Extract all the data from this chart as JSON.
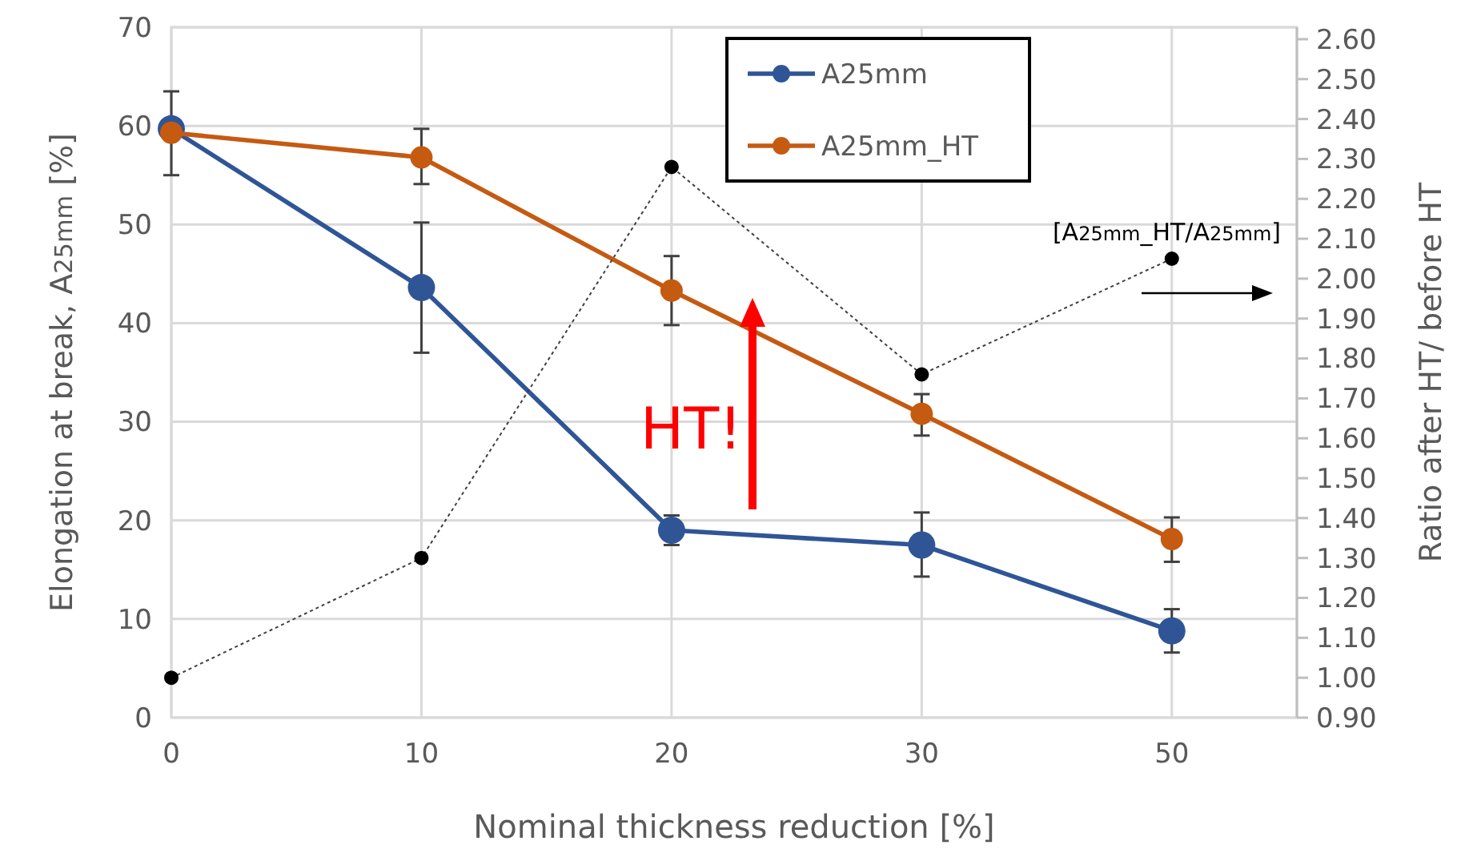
{
  "chart_data": {
    "type": "line",
    "xlabel": "Nominal thickness reduction [%]",
    "ylabel": "Elongation at break, A$_{25mm}$ [%]",
    "y2label": "Ratio after HT/ before HT",
    "categories": [
      "0",
      "10",
      "20",
      "30",
      "50"
    ],
    "series": [
      {
        "name": "A25mm",
        "color": "#2f5597",
        "values": [
          59.7,
          43.6,
          19.0,
          17.5,
          8.8
        ],
        "errors": [
          [
            55.0,
            63.5
          ],
          [
            37.0,
            50.2
          ],
          [
            17.5,
            20.5
          ],
          [
            14.3,
            20.8
          ],
          [
            6.6,
            11.0
          ]
        ]
      },
      {
        "name": "A25mm_HT",
        "color": "#c55a11",
        "values": [
          59.3,
          56.8,
          43.3,
          30.8,
          18.1
        ],
        "errors": [
          null,
          [
            54.1,
            59.7
          ],
          [
            39.8,
            46.8
          ],
          [
            28.6,
            32.8
          ],
          [
            15.8,
            20.3
          ]
        ]
      },
      {
        "color": "#000000",
        "axis": "y2",
        "line_style": "dotted",
        "values": [
          1.0,
          1.3,
          2.28,
          1.76,
          2.05
        ]
      }
    ],
    "ylim": [
      0,
      70
    ],
    "yticks": [
      0,
      10,
      20,
      30,
      40,
      50,
      60,
      70
    ],
    "y2lim": [
      0.9,
      2.63
    ],
    "y2ticks": [
      {
        "value": 0.9,
        "label": "0.90"
      },
      {
        "value": 1.0,
        "label": "1.00"
      },
      {
        "value": 1.1,
        "label": "1.10"
      },
      {
        "value": 1.2,
        "label": "1.20"
      },
      {
        "value": 1.3,
        "label": "1.30"
      },
      {
        "value": 1.4,
        "label": "1.40"
      },
      {
        "value": 1.5,
        "label": "1.50"
      },
      {
        "value": 1.6,
        "label": "1.60"
      },
      {
        "value": 1.7,
        "label": "1.70"
      },
      {
        "value": 1.8,
        "label": "1.80"
      },
      {
        "value": 1.9,
        "label": "1.90"
      },
      {
        "value": 2.0,
        "label": "2.00"
      },
      {
        "value": 2.1,
        "label": "2.10"
      },
      {
        "value": 2.2,
        "label": "2.20"
      },
      {
        "value": 2.3,
        "label": "2.30"
      },
      {
        "value": 2.4,
        "label": "2.40"
      },
      {
        "value": 2.5,
        "label": "2.50"
      },
      {
        "value": 2.6,
        "label": "2.60"
      }
    ],
    "grid": true,
    "legend": "top",
    "marker": "circle",
    "annotations": [
      "HT!",
      "[A$_{25mm}$_HT/A$_{25mm}$]"
    ]
  }
}
